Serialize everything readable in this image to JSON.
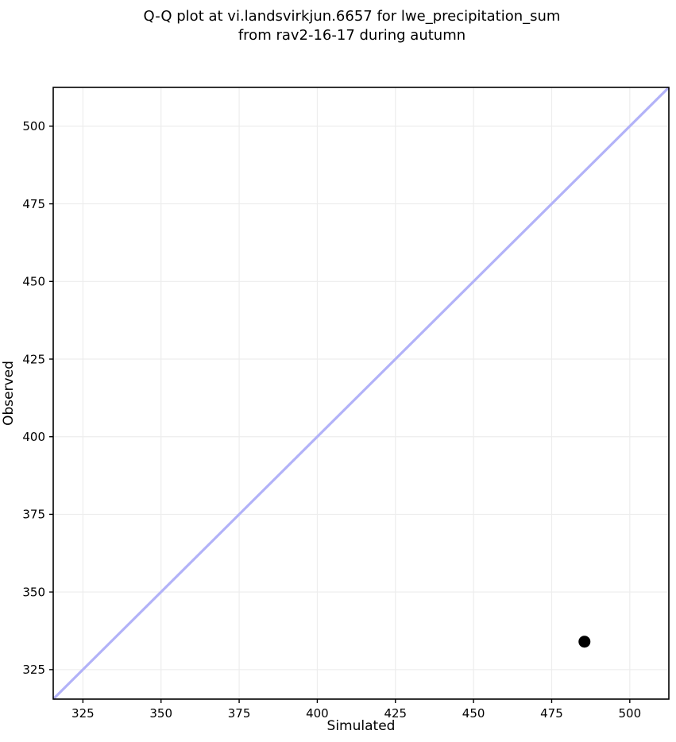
{
  "figure": {
    "title_line1": "Q-Q plot at vi.landsvirkjun.6657 for lwe_precipitation_sum",
    "title_line2": "from rav2-16-17 during autumn"
  },
  "chart_data": {
    "type": "scatter",
    "title": "Q-Q plot at vi.landsvirkjun.6657 for lwe_precipitation_sum from rav2-16-17 during autumn",
    "xlabel": "Simulated",
    "ylabel": "Observed",
    "xlim": [
      315.5,
      512.5
    ],
    "ylim": [
      315.5,
      512.5
    ],
    "xticks": [
      325,
      350,
      375,
      400,
      425,
      450,
      475,
      500
    ],
    "yticks": [
      325,
      350,
      375,
      400,
      425,
      450,
      475,
      500
    ],
    "grid": true,
    "legend": false,
    "series": [
      {
        "name": "identity-line",
        "kind": "line",
        "color": "#b2b2f8",
        "line_width": 3.2,
        "points": [
          [
            315.5,
            315.5
          ],
          [
            512.5,
            512.5
          ]
        ]
      },
      {
        "name": "quantile-point",
        "kind": "scatter",
        "color": "#000000",
        "marker": "circle",
        "marker_radius": 7.5,
        "points": [
          [
            485.5,
            334.0
          ]
        ]
      }
    ],
    "colors": {
      "background": "#ffffff",
      "grid": "#ededed",
      "spine": "#000000",
      "tick": "#000000",
      "text": "#000000"
    }
  }
}
